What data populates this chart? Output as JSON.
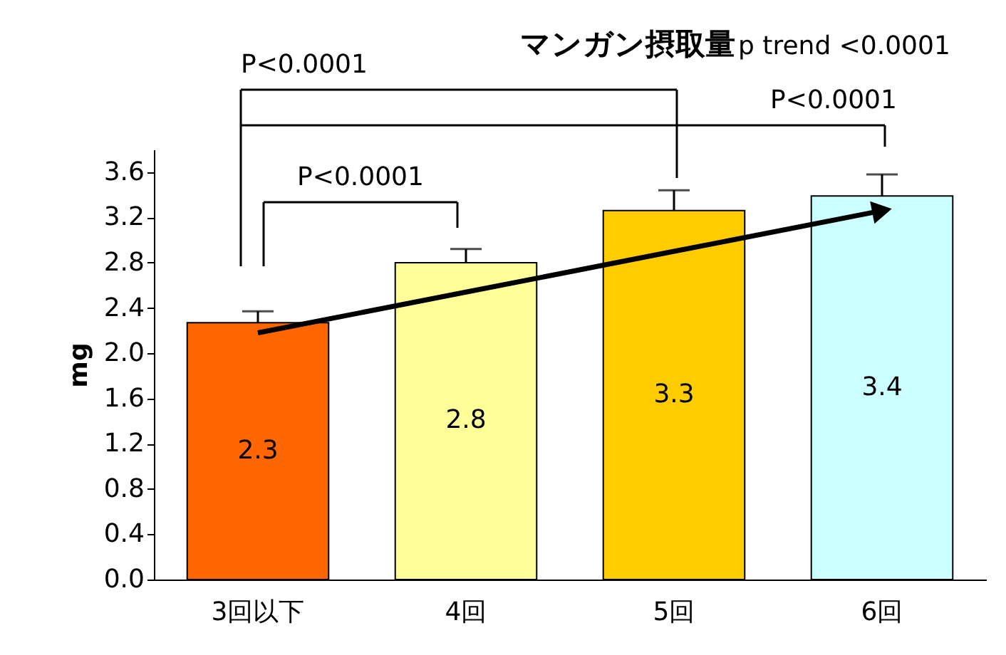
{
  "chart_data": {
    "type": "bar",
    "title": "マンガン摂取量",
    "subtitle": "p trend <0.0001",
    "ylabel": "mg",
    "categories": [
      "3回以下",
      "4回",
      "5回",
      "6回"
    ],
    "series": [
      {
        "values": [
          2.27,
          2.8,
          3.26,
          3.39
        ],
        "colors": [
          "#ff6600",
          "#ffff99",
          "#ffcc00",
          "#ccffff"
        ],
        "errors": [
          [
            2.27,
            2.37
          ],
          [
            2.8,
            2.92
          ],
          [
            3.26,
            3.44
          ],
          [
            3.39,
            3.58
          ]
        ],
        "value_labels": [
          "2.3",
          "2.8",
          "3.3",
          "3.4"
        ]
      },
      {
        "type": "line",
        "values": [
          2.18,
          2.54,
          2.9,
          3.26
        ],
        "color": "#000000"
      }
    ],
    "annotations": [
      "P<0.0001",
      "P<0.0001",
      "P<0.0001"
    ],
    "ylim": [
      0,
      3.8
    ],
    "yticks": [
      {
        "value": 0,
        "label": "0.0"
      },
      0.4,
      0.8,
      1.2,
      1.6,
      {
        "value": 2,
        "label": "2.0"
      },
      2.4,
      2.8,
      3.2,
      3.6
    ],
    "grid": false,
    "legend": false
  }
}
